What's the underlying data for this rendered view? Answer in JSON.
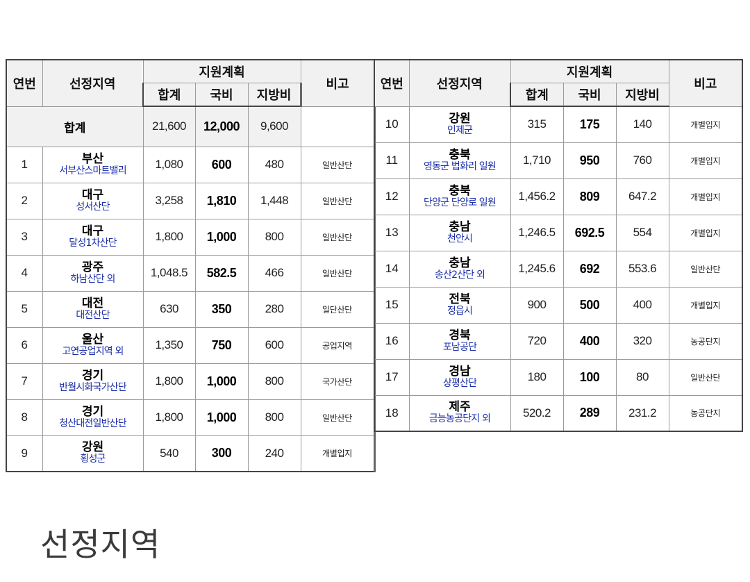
{
  "headers": {
    "seq": "연번",
    "region": "선정지역",
    "plan": "지원계획",
    "total": "합계",
    "national": "국비",
    "local": "지방비",
    "note": "비고"
  },
  "total_row": {
    "label": "합계",
    "total": "21,600",
    "national": "12,000",
    "local": "9,600"
  },
  "left_rows": [
    {
      "no": "1",
      "province": "부산",
      "site": "서부산스마트밸리",
      "total": "1,080",
      "national": "600",
      "local": "480",
      "note": "일반산단"
    },
    {
      "no": "2",
      "province": "대구",
      "site": "성서산단",
      "total": "3,258",
      "national": "1,810",
      "local": "1,448",
      "note": "일반산단"
    },
    {
      "no": "3",
      "province": "대구",
      "site": "달성1차산단",
      "total": "1,800",
      "national": "1,000",
      "local": "800",
      "note": "일반산단"
    },
    {
      "no": "4",
      "province": "광주",
      "site": "하남산단 외",
      "total": "1,048.5",
      "national": "582.5",
      "local": "466",
      "note": "일반산단"
    },
    {
      "no": "5",
      "province": "대전",
      "site": "대전산단",
      "total": "630",
      "national": "350",
      "local": "280",
      "note": "일단산단"
    },
    {
      "no": "6",
      "province": "울산",
      "site": "고연공업지역 외",
      "total": "1,350",
      "national": "750",
      "local": "600",
      "note": "공업지역"
    },
    {
      "no": "7",
      "province": "경기",
      "site": "반월시화국가산단",
      "total": "1,800",
      "national": "1,000",
      "local": "800",
      "note": "국가산단"
    },
    {
      "no": "8",
      "province": "경기",
      "site": "청산대전일반산단",
      "total": "1,800",
      "national": "1,000",
      "local": "800",
      "note": "일반산단"
    },
    {
      "no": "9",
      "province": "강원",
      "site": "횡성군",
      "total": "540",
      "national": "300",
      "local": "240",
      "note": "개별입지"
    }
  ],
  "right_rows": [
    {
      "no": "10",
      "province": "강원",
      "site": "인제군",
      "total": "315",
      "national": "175",
      "local": "140",
      "note": "개별입지"
    },
    {
      "no": "11",
      "province": "충북",
      "site": "영동군 법화리 일원",
      "total": "1,710",
      "national": "950",
      "local": "760",
      "note": "개별입지"
    },
    {
      "no": "12",
      "province": "충북",
      "site": "단양군 단양로 일원",
      "total": "1,456.2",
      "national": "809",
      "local": "647.2",
      "note": "개별입지"
    },
    {
      "no": "13",
      "province": "충남",
      "site": "천안시",
      "total": "1,246.5",
      "national": "692.5",
      "local": "554",
      "note": "개별입지"
    },
    {
      "no": "14",
      "province": "충남",
      "site": "송산2산단 외",
      "total": "1,245.6",
      "national": "692",
      "local": "553.6",
      "note": "일반산단"
    },
    {
      "no": "15",
      "province": "전북",
      "site": "정읍시",
      "total": "900",
      "national": "500",
      "local": "400",
      "note": "개별입지"
    },
    {
      "no": "16",
      "province": "경북",
      "site": "포남공단",
      "total": "720",
      "national": "400",
      "local": "320",
      "note": "농공단지"
    },
    {
      "no": "17",
      "province": "경남",
      "site": "상평산단",
      "total": "180",
      "national": "100",
      "local": "80",
      "note": "일반산단"
    },
    {
      "no": "18",
      "province": "제주",
      "site": "금능농공단지 외",
      "total": "520.2",
      "national": "289",
      "local": "231.2",
      "note": "농공단지"
    }
  ],
  "heading": "선정지역",
  "colors": {
    "site_text": "#1a2ea8",
    "header_bg": "#f1f1f1",
    "border": "#9a9a9a"
  }
}
